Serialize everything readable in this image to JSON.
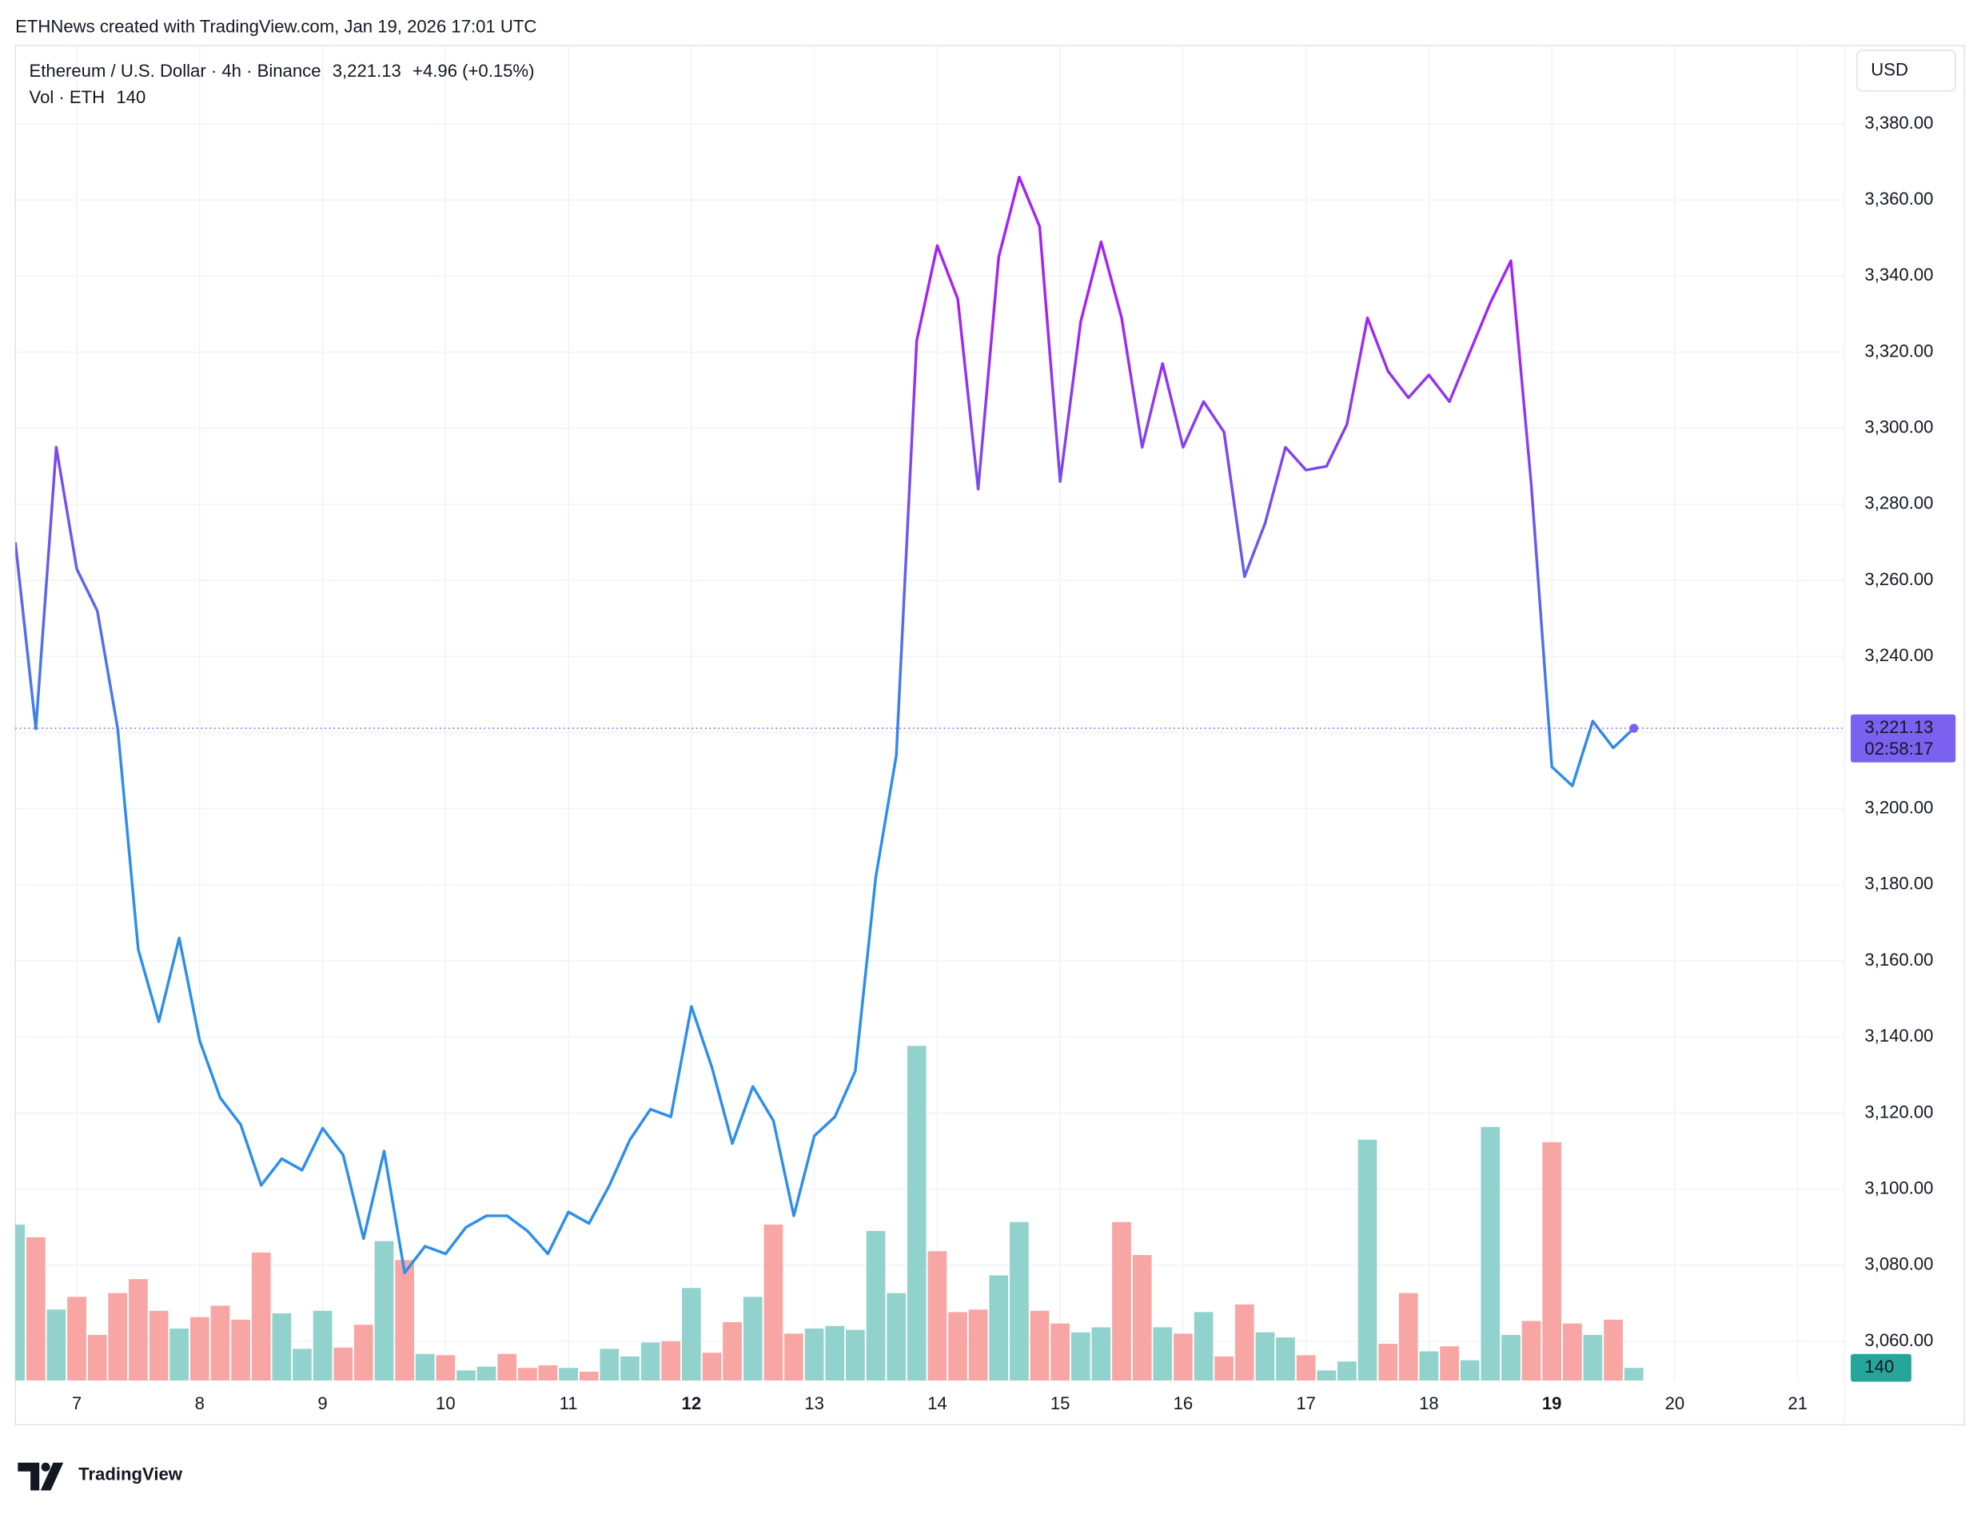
{
  "header": {
    "credit": "ETHNews created with TradingView.com, Jan 19, 2026 17:01 UTC",
    "brand": "TradingView"
  },
  "chart_data": {
    "type": "line",
    "title": "Ethereum / U.S. Dollar · 4h · Binance",
    "change": "+4.96 (+0.15%)",
    "currency": "USD",
    "last_price": {
      "value": 3221.13,
      "label": "3,221.13"
    },
    "countdown": "02:58:17",
    "colors": [
      "#2d8fe8",
      "#a624f0"
    ],
    "price_tag_color": "#7b61f0",
    "x": [
      6.5,
      6.667,
      6.833,
      7,
      7.167,
      7.333,
      7.5,
      7.667,
      7.833,
      8,
      8.167,
      8.333,
      8.5,
      8.667,
      8.833,
      9,
      9.167,
      9.333,
      9.5,
      9.667,
      9.833,
      10,
      10.167,
      10.333,
      10.5,
      10.667,
      10.833,
      11,
      11.167,
      11.333,
      11.5,
      11.667,
      11.833,
      12,
      12.167,
      12.333,
      12.5,
      12.667,
      12.833,
      13,
      13.167,
      13.333,
      13.5,
      13.667,
      13.833,
      14,
      14.167,
      14.333,
      14.5,
      14.667,
      14.833,
      15,
      15.167,
      15.333,
      15.5,
      15.667,
      15.833,
      16,
      16.167,
      16.333,
      16.5,
      16.667,
      16.833,
      17,
      17.167,
      17.333,
      17.5,
      17.667,
      17.833,
      18,
      18.167,
      18.333,
      18.5,
      18.667,
      18.833,
      19,
      19.167,
      19.333,
      19.5,
      19.667
    ],
    "values": [
      3270,
      3221,
      3295,
      3263,
      3252,
      3221,
      3163,
      3144,
      3166,
      3139,
      3124,
      3117,
      3101,
      3108,
      3105,
      3116,
      3109,
      3087,
      3110,
      3078,
      3085,
      3083,
      3090,
      3093,
      3093,
      3089,
      3083,
      3094,
      3091,
      3101,
      3113,
      3121,
      3119,
      3148,
      3132,
      3112,
      3127,
      3118,
      3093,
      3114,
      3119,
      3131,
      3182,
      3214,
      3323,
      3348,
      3334,
      3284,
      3345,
      3366,
      3353,
      3286,
      3328,
      3349,
      3329,
      3295,
      3317,
      3295,
      3307,
      3299,
      3261,
      3275,
      3295,
      3289,
      3290,
      3301,
      3329,
      3315,
      3308,
      3314,
      3307,
      3320,
      3333,
      3344,
      3285,
      3211,
      3206,
      3223,
      3216,
      3221.13
    ],
    "volume": {
      "label": "Vol · ETH",
      "tag_color": "#26a69a",
      "values": [
        1722,
        1582,
        784,
        924,
        504,
        966,
        1120,
        770,
        574,
        700,
        826,
        672,
        1414,
        742,
        350,
        770,
        364,
        616,
        1540,
        1330,
        294,
        280,
        112,
        154,
        294,
        140,
        168,
        140,
        98,
        350,
        266,
        420,
        434,
        1022,
        308,
        644,
        924,
        1722,
        518,
        574,
        602,
        560,
        1652,
        966,
        3696,
        1428,
        756,
        784,
        1162,
        1750,
        770,
        630,
        532,
        588,
        1750,
        1386,
        588,
        518,
        756,
        266,
        840,
        532,
        476,
        280,
        112,
        210,
        2660,
        406,
        966,
        322,
        378,
        224,
        2800,
        504,
        658,
        2632,
        630,
        504,
        672,
        140
      ],
      "colors": [
        "#92d2cc",
        "#f7a6a4",
        "#92d2cc",
        "#f7a6a4",
        "#f7a6a4",
        "#f7a6a4",
        "#f7a6a4",
        "#f7a6a4",
        "#92d2cc",
        "#f7a6a4",
        "#f7a6a4",
        "#f7a6a4",
        "#f7a6a4",
        "#92d2cc",
        "#92d2cc",
        "#92d2cc",
        "#f7a6a4",
        "#f7a6a4",
        "#92d2cc",
        "#f7a6a4",
        "#92d2cc",
        "#f7a6a4",
        "#92d2cc",
        "#92d2cc",
        "#f7a6a4",
        "#f7a6a4",
        "#f7a6a4",
        "#92d2cc",
        "#f7a6a4",
        "#92d2cc",
        "#92d2cc",
        "#92d2cc",
        "#f7a6a4",
        "#92d2cc",
        "#f7a6a4",
        "#f7a6a4",
        "#92d2cc",
        "#f7a6a4",
        "#f7a6a4",
        "#92d2cc",
        "#92d2cc",
        "#92d2cc",
        "#92d2cc",
        "#92d2cc",
        "#92d2cc",
        "#f7a6a4",
        "#f7a6a4",
        "#f7a6a4",
        "#92d2cc",
        "#92d2cc",
        "#f7a6a4",
        "#f7a6a4",
        "#92d2cc",
        "#92d2cc",
        "#f7a6a4",
        "#f7a6a4",
        "#92d2cc",
        "#f7a6a4",
        "#92d2cc",
        "#f7a6a4",
        "#f7a6a4",
        "#92d2cc",
        "#92d2cc",
        "#f7a6a4",
        "#92d2cc",
        "#92d2cc",
        "#92d2cc",
        "#f7a6a4",
        "#f7a6a4",
        "#92d2cc",
        "#f7a6a4",
        "#92d2cc",
        "#92d2cc",
        "#92d2cc",
        "#f7a6a4",
        "#f7a6a4",
        "#f7a6a4",
        "#92d2cc",
        "#f7a6a4",
        "#92d2cc"
      ]
    },
    "xlim": [
      6.5,
      21.38
    ],
    "xticks": [
      7,
      8,
      9,
      10,
      11,
      12,
      13,
      14,
      15,
      16,
      17,
      18,
      19,
      20,
      21
    ],
    "xtick_emphasis": [
      12,
      19
    ],
    "ylim": [
      3049.7,
      3400.6
    ],
    "yticks": [
      {
        "value": 3060,
        "label": "3,060.00"
      },
      {
        "value": 3080,
        "label": "3,080.00"
      },
      {
        "value": 3100,
        "label": "3,100.00"
      },
      {
        "value": 3120,
        "label": "3,120.00"
      },
      {
        "value": 3140,
        "label": "3,140.00"
      },
      {
        "value": 3160,
        "label": "3,160.00"
      },
      {
        "value": 3180,
        "label": "3,180.00"
      },
      {
        "value": 3200,
        "label": "3,200.00"
      },
      {
        "value": 3220,
        "label": "3,220.00"
      },
      {
        "value": 3240,
        "label": "3,240.00"
      },
      {
        "value": 3260,
        "label": "3,260.00"
      },
      {
        "value": 3280,
        "label": "3,280.00"
      },
      {
        "value": 3300,
        "label": "3,300.00"
      },
      {
        "value": 3320,
        "label": "3,320.00"
      },
      {
        "value": 3340,
        "label": "3,340.00"
      },
      {
        "value": 3360,
        "label": "3,360.00"
      },
      {
        "value": 3380,
        "label": "3,380.00"
      }
    ],
    "grid": true
  }
}
